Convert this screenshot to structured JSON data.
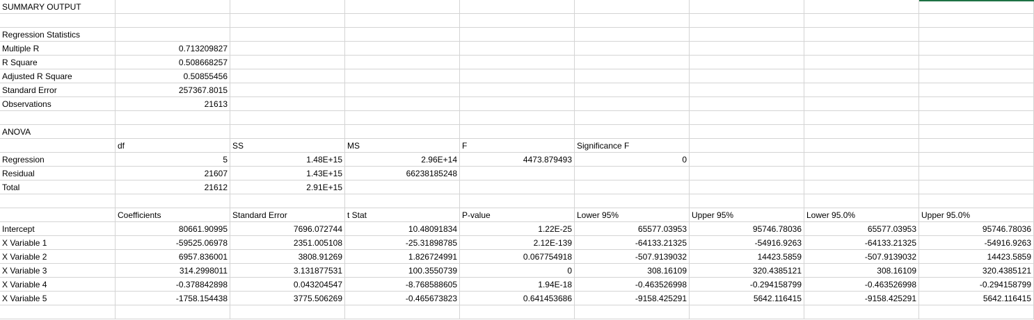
{
  "sheet": {
    "summary_title": "SUMMARY OUTPUT",
    "regression_statistics": {
      "header": "Regression Statistics",
      "rows": [
        {
          "label": "Multiple R",
          "value": "0.713209827"
        },
        {
          "label": "R Square",
          "value": "0.508668257"
        },
        {
          "label": "Adjusted R Square",
          "value": "0.50855456"
        },
        {
          "label": "Standard Error",
          "value": "257367.8015"
        },
        {
          "label": "Observations",
          "value": "21613"
        }
      ]
    },
    "anova": {
      "title": "ANOVA",
      "headers": [
        "",
        "df",
        "SS",
        "MS",
        "F",
        "Significance F"
      ],
      "rows": [
        [
          "Regression",
          "5",
          "1.48E+15",
          "2.96E+14",
          "4473.879493",
          "0"
        ],
        [
          "Residual",
          "21607",
          "1.43E+15",
          "66238185248",
          "",
          ""
        ],
        [
          "Total",
          "21612",
          "2.91E+15",
          "",
          "",
          ""
        ]
      ]
    },
    "coefficients": {
      "headers": [
        "",
        "Coefficients",
        "Standard Error",
        "t Stat",
        "P-value",
        "Lower 95%",
        "Upper 95%",
        "Lower 95.0%",
        "Upper 95.0%"
      ],
      "rows": [
        [
          "Intercept",
          "80661.90995",
          "7696.072744",
          "10.48091834",
          "1.22E-25",
          "65577.03953",
          "95746.78036",
          "65577.03953",
          "95746.78036"
        ],
        [
          "X Variable 1",
          "-59525.06978",
          "2351.005108",
          "-25.31898785",
          "2.12E-139",
          "-64133.21325",
          "-54916.9263",
          "-64133.21325",
          "-54916.9263"
        ],
        [
          "X Variable 2",
          "6957.836001",
          "3808.91269",
          "1.826724991",
          "0.067754918",
          "-507.9139032",
          "14423.5859",
          "-507.9139032",
          "14423.5859"
        ],
        [
          "X Variable 3",
          "314.2998011",
          "3.131877531",
          "100.3550739",
          "0",
          "308.16109",
          "320.4385121",
          "308.16109",
          "320.4385121"
        ],
        [
          "X Variable 4",
          "-0.378842898",
          "0.043204547",
          "-8.768588605",
          "1.94E-18",
          "-0.463526998",
          "-0.294158799",
          "-0.463526998",
          "-0.294158799"
        ],
        [
          "X Variable 5",
          "-1758.154438",
          "3775.506269",
          "-0.465673823",
          "0.641453686",
          "-9158.425291",
          "5642.116415",
          "-9158.425291",
          "5642.116415"
        ]
      ]
    }
  }
}
